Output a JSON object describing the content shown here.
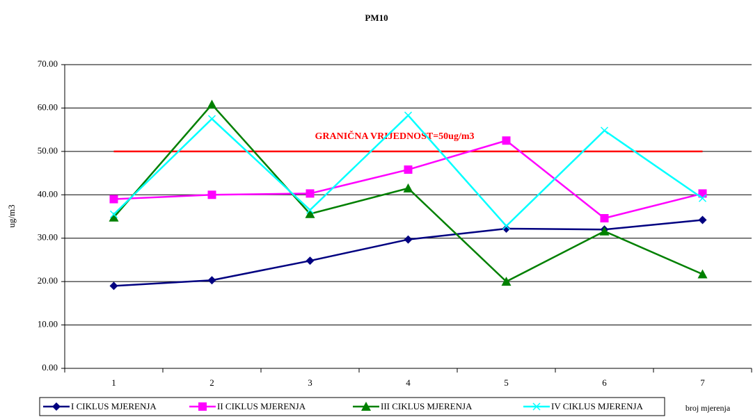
{
  "chart_data": {
    "type": "line",
    "title": "PM10",
    "y_label": "ug/m3",
    "x_label": "broj mjerenja",
    "categories": [
      "1",
      "2",
      "3",
      "4",
      "5",
      "6",
      "7"
    ],
    "series": [
      {
        "name": "I CIKLUS MJERENJA",
        "color": "#000080",
        "marker": "diamond",
        "values": [
          19.0,
          20.3,
          24.8,
          29.7,
          32.2,
          32.0,
          34.2
        ]
      },
      {
        "name": "II CIKLUS MJERENJA",
        "color": "#ff00ff",
        "marker": "square",
        "values": [
          39.0,
          40.0,
          40.3,
          45.8,
          52.5,
          34.6,
          40.3
        ]
      },
      {
        "name": "III CIKLUS MJERENJA",
        "color": "#008000",
        "marker": "triangle",
        "values": [
          34.8,
          60.8,
          35.6,
          41.5,
          20.0,
          31.6,
          21.7
        ]
      },
      {
        "name": "IV CIKLUS MJERENJA",
        "color": "#00ffff",
        "marker": "x",
        "values": [
          35.5,
          57.5,
          36.5,
          58.3,
          32.8,
          54.8,
          39.2
        ]
      }
    ],
    "reference_line": {
      "value": 50,
      "color": "#ff0000",
      "label": "GRANIČNA VRIJEDNOST=50ug/m3"
    },
    "ylim": [
      0,
      70
    ],
    "yticks": [
      {
        "value": 0,
        "label": "0.00"
      },
      {
        "value": 10,
        "label": "10.00"
      },
      {
        "value": 20,
        "label": "20.00"
      },
      {
        "value": 30,
        "label": "30.00"
      },
      {
        "value": 40,
        "label": "40.00"
      },
      {
        "value": 50,
        "label": "50.00"
      },
      {
        "value": 60,
        "label": "60.00"
      },
      {
        "value": 70,
        "label": "70.00"
      }
    ],
    "grid": true,
    "legend": "bottom"
  }
}
